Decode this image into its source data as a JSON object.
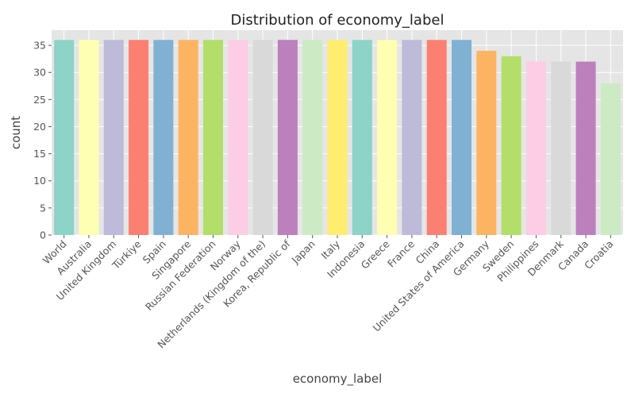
{
  "chart_data": {
    "type": "bar",
    "title": "Distribution of economy_label",
    "xlabel": "economy_label",
    "ylabel": "count",
    "ylim": [
      0,
      37.8
    ],
    "yticks": [
      0,
      5,
      10,
      15,
      20,
      25,
      30,
      35
    ],
    "grid": true,
    "legend": "none",
    "background": "#e5e5e5",
    "gridColor": "#ffffff",
    "categories": [
      "World",
      "Australia",
      "United Kingdom",
      "Türkiye",
      "Spain",
      "Singapore",
      "Russian Federation",
      "Norway",
      "Netherlands (Kingdom of the)",
      "Korea, Republic of",
      "Japan",
      "Italy",
      "Indonesia",
      "Greece",
      "France",
      "China",
      "United States of America",
      "Germany",
      "Sweden",
      "Philippines",
      "Denmark",
      "Canada",
      "Croatia"
    ],
    "values": [
      36,
      36,
      36,
      36,
      36,
      36,
      36,
      36,
      36,
      36,
      36,
      36,
      36,
      36,
      36,
      36,
      36,
      34,
      33,
      32,
      32,
      32,
      28
    ],
    "colors": [
      "#8dd3c7",
      "#ffffb3",
      "#bebada",
      "#fb8072",
      "#80b1d3",
      "#fdb462",
      "#b3de69",
      "#fccde5",
      "#d9d9d9",
      "#bc80bd",
      "#ccebc5",
      "#ffed6f",
      "#8dd3c7",
      "#ffffb3",
      "#bebada",
      "#fb8072",
      "#80b1d3",
      "#fdb462",
      "#b3de69",
      "#fccde5",
      "#d9d9d9",
      "#bc80bd",
      "#ccebc5"
    ]
  }
}
